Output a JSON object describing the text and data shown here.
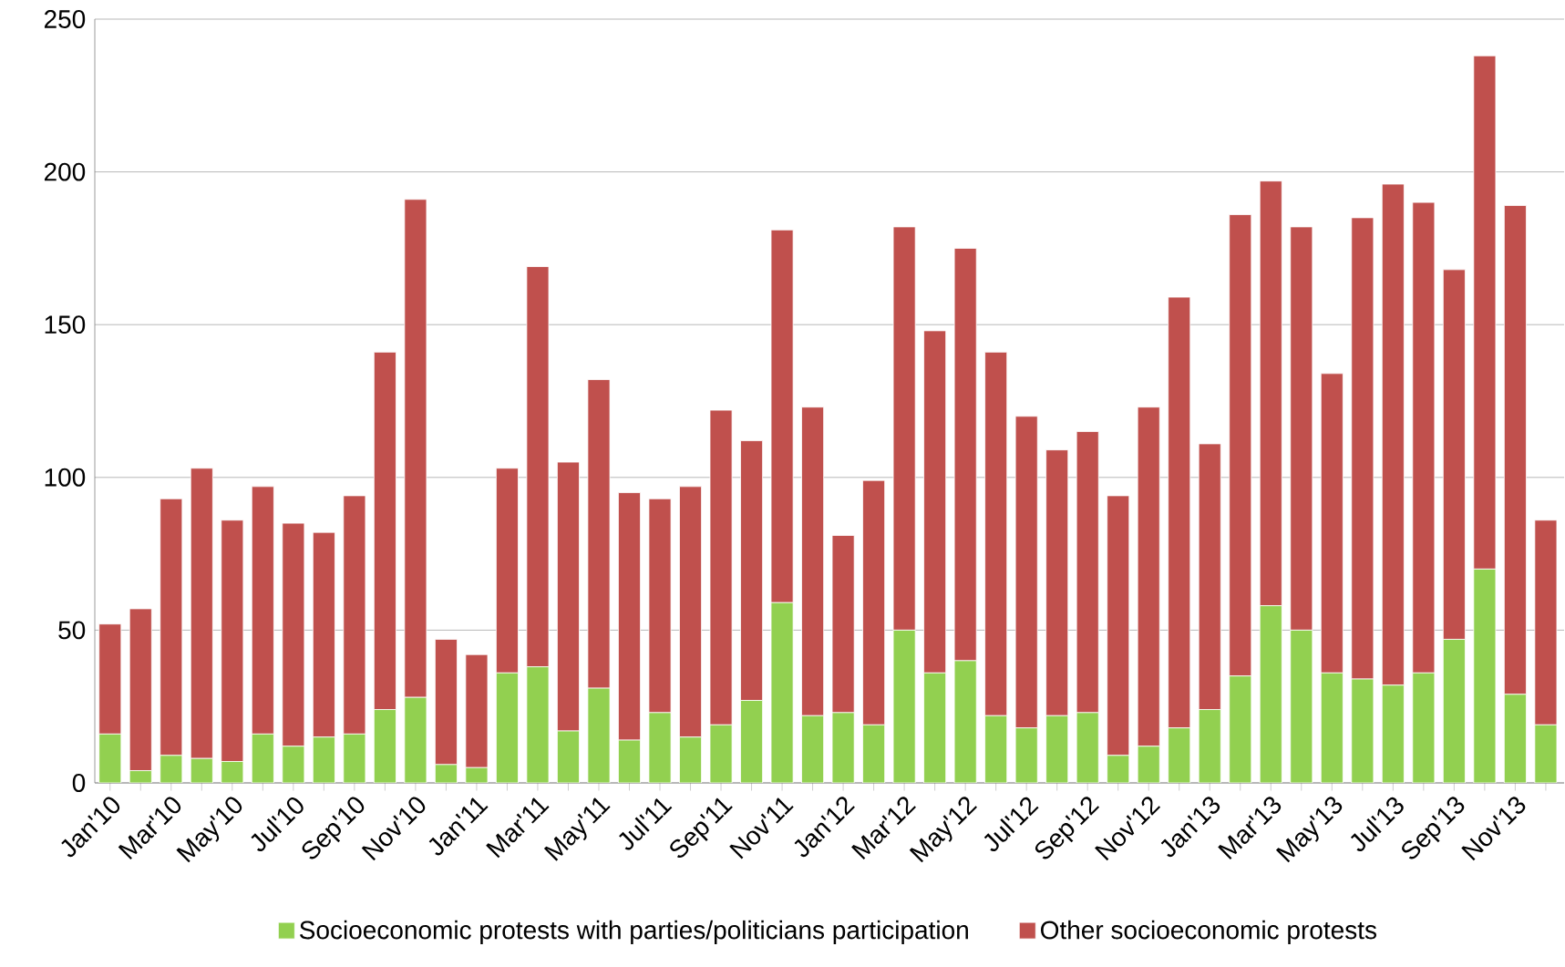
{
  "chart_data": {
    "type": "bar",
    "stacked": true,
    "categories": [
      "Jan'10",
      null,
      "Mar'10",
      null,
      "May'10",
      null,
      "Jul'10",
      null,
      "Sep'10",
      null,
      "Nov'10",
      null,
      "Jan'11",
      null,
      "Mar'11",
      null,
      "May'11",
      null,
      "Jul'11",
      null,
      "Sep'11",
      null,
      "Nov'11",
      null,
      "Jan'12",
      null,
      "Mar'12",
      null,
      "May'12",
      null,
      "Jul'12",
      null,
      "Sep'12",
      null,
      "Nov'12",
      null,
      "Jan'13",
      null,
      "Mar'13",
      null,
      "May'13",
      null,
      "Jul'13",
      null,
      "Sep'13",
      null,
      "Nov'13",
      null
    ],
    "series": [
      {
        "name": "Socioeconomic protests with parties/politicians participation",
        "color": "#92d050",
        "values": [
          16,
          4,
          9,
          8,
          7,
          16,
          12,
          15,
          16,
          24,
          28,
          6,
          5,
          36,
          38,
          17,
          31,
          14,
          23,
          15,
          19,
          27,
          59,
          22,
          23,
          19,
          50,
          36,
          40,
          22,
          18,
          22,
          23,
          9,
          12,
          18,
          24,
          35,
          58,
          50,
          36,
          34,
          32,
          36,
          47,
          70,
          29,
          19
        ]
      },
      {
        "name": "Other socioeconomic protests",
        "color": "#c0504d",
        "values": [
          36,
          53,
          84,
          95,
          79,
          81,
          73,
          67,
          78,
          117,
          163,
          41,
          37,
          67,
          131,
          88,
          101,
          81,
          70,
          82,
          103,
          85,
          122,
          101,
          58,
          80,
          132,
          112,
          135,
          119,
          102,
          87,
          92,
          85,
          111,
          141,
          87,
          151,
          139,
          132,
          98,
          151,
          164,
          154,
          121,
          168,
          160,
          67
        ]
      }
    ],
    "ylim": [
      0,
      250
    ],
    "yticks": [
      0,
      50,
      100,
      150,
      200,
      250
    ],
    "grid": "y",
    "legend": "bottom"
  }
}
